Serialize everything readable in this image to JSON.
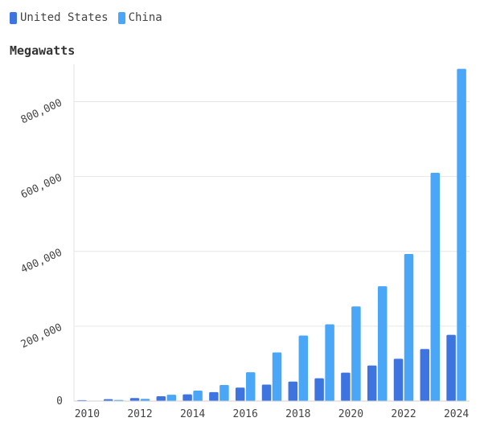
{
  "chart_data": {
    "type": "bar",
    "ylabel": "Megawatts",
    "xlabel": "",
    "categories": [
      "2010",
      "2011",
      "2012",
      "2013",
      "2014",
      "2015",
      "2016",
      "2017",
      "2018",
      "2019",
      "2020",
      "2021",
      "2022",
      "2023",
      "2024"
    ],
    "x_tick_labels": [
      "2010",
      "2012",
      "2014",
      "2016",
      "2018",
      "2020",
      "2022",
      "2024"
    ],
    "y_tick_labels": [
      "0",
      "200,000",
      "400,000",
      "600,000",
      "800,000"
    ],
    "y_ticks": [
      0,
      200000,
      400000,
      600000,
      800000
    ],
    "ylim": [
      0,
      900000
    ],
    "grid": true,
    "legend_position": "top-left",
    "series": [
      {
        "name": "United States",
        "color": "#3d74e0",
        "values": [
          2500,
          5000,
          8000,
          13000,
          18000,
          24000,
          36000,
          44000,
          52000,
          61000,
          76000,
          95000,
          113000,
          139000,
          177000
        ]
      },
      {
        "name": "China",
        "color": "#4aa6f7",
        "values": [
          1000,
          3000,
          6000,
          17000,
          28000,
          43000,
          77000,
          130000,
          175000,
          205000,
          253000,
          307000,
          393000,
          610000,
          888000
        ]
      }
    ]
  }
}
